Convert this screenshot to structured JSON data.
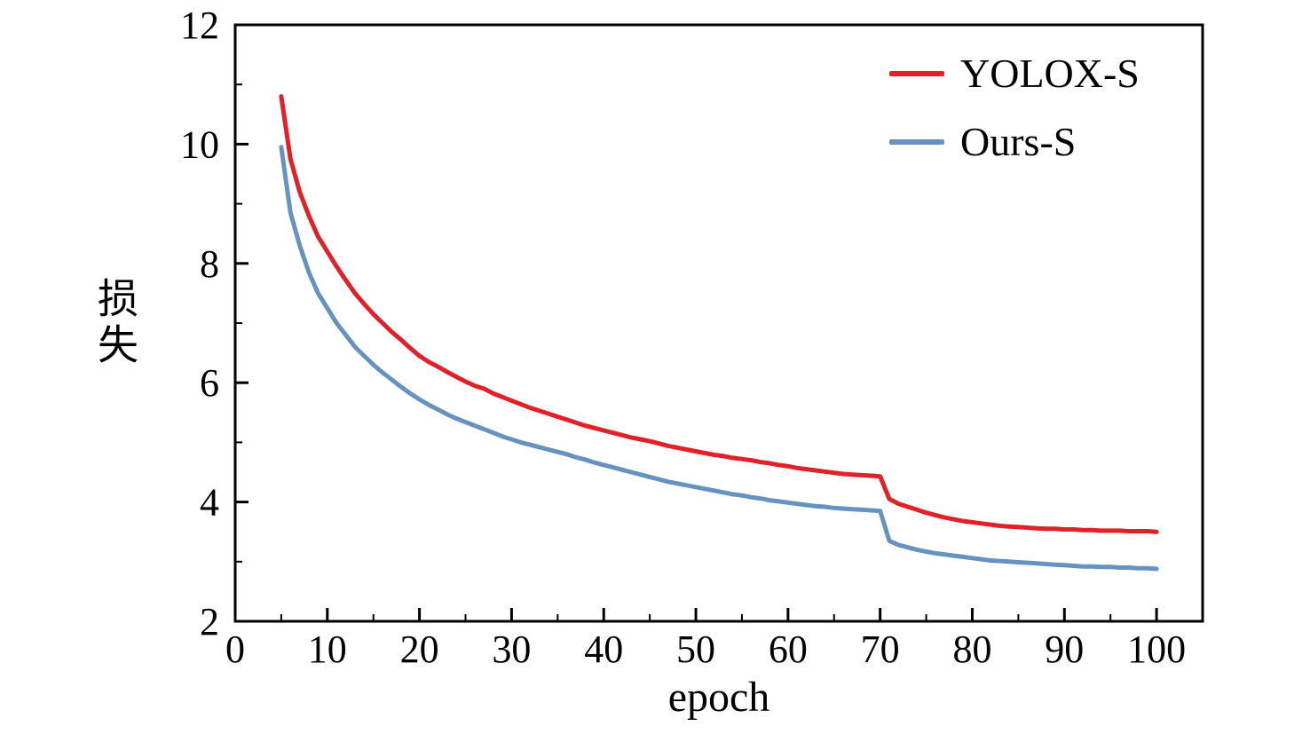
{
  "chart_data": {
    "type": "line",
    "title": "",
    "xlabel": "epoch",
    "ylabel": "损失",
    "xlim": [
      0,
      105
    ],
    "ylim": [
      2,
      12
    ],
    "x_ticks": [
      0,
      10,
      20,
      30,
      40,
      50,
      60,
      70,
      80,
      90,
      100
    ],
    "y_ticks": [
      2,
      4,
      6,
      8,
      10,
      12
    ],
    "x_minor_step": 5,
    "y_minor_step": 1,
    "grid": false,
    "legend_position": "upper right",
    "axis_color": "#000000",
    "x": [
      5,
      6,
      7,
      8,
      9,
      10,
      11,
      12,
      13,
      14,
      15,
      16,
      17,
      18,
      19,
      20,
      21,
      22,
      23,
      24,
      25,
      26,
      27,
      28,
      29,
      30,
      31,
      32,
      33,
      34,
      35,
      36,
      37,
      38,
      39,
      40,
      41,
      42,
      43,
      44,
      45,
      46,
      47,
      48,
      49,
      50,
      51,
      52,
      53,
      54,
      55,
      56,
      57,
      58,
      59,
      60,
      61,
      62,
      63,
      64,
      65,
      66,
      67,
      68,
      69,
      70,
      71,
      72,
      73,
      74,
      75,
      76,
      77,
      78,
      79,
      80,
      81,
      82,
      83,
      84,
      85,
      86,
      87,
      88,
      89,
      90,
      91,
      92,
      93,
      94,
      95,
      96,
      97,
      98,
      99,
      100
    ],
    "series": [
      {
        "name": "YOLOX-S",
        "color": "#e02128",
        "values": [
          10.8,
          9.75,
          9.2,
          8.8,
          8.45,
          8.2,
          7.95,
          7.72,
          7.5,
          7.32,
          7.15,
          7.0,
          6.85,
          6.72,
          6.58,
          6.45,
          6.35,
          6.27,
          6.18,
          6.1,
          6.02,
          5.95,
          5.9,
          5.82,
          5.76,
          5.7,
          5.64,
          5.58,
          5.53,
          5.48,
          5.43,
          5.38,
          5.33,
          5.28,
          5.24,
          5.2,
          5.16,
          5.12,
          5.08,
          5.05,
          5.02,
          4.98,
          4.94,
          4.91,
          4.88,
          4.85,
          4.82,
          4.79,
          4.77,
          4.74,
          4.72,
          4.7,
          4.67,
          4.65,
          4.62,
          4.6,
          4.57,
          4.55,
          4.53,
          4.51,
          4.49,
          4.47,
          4.46,
          4.45,
          4.44,
          4.43,
          4.05,
          3.97,
          3.92,
          3.87,
          3.82,
          3.78,
          3.74,
          3.71,
          3.68,
          3.66,
          3.64,
          3.62,
          3.6,
          3.59,
          3.58,
          3.57,
          3.56,
          3.55,
          3.55,
          3.54,
          3.54,
          3.53,
          3.53,
          3.52,
          3.52,
          3.52,
          3.51,
          3.51,
          3.51,
          3.5
        ]
      },
      {
        "name": "Ours-S",
        "color": "#6592c0",
        "values": [
          9.95,
          8.85,
          8.3,
          7.85,
          7.5,
          7.25,
          7.0,
          6.8,
          6.6,
          6.45,
          6.3,
          6.17,
          6.05,
          5.93,
          5.82,
          5.72,
          5.63,
          5.55,
          5.47,
          5.4,
          5.34,
          5.28,
          5.22,
          5.16,
          5.1,
          5.05,
          5.0,
          4.96,
          4.92,
          4.88,
          4.84,
          4.8,
          4.75,
          4.71,
          4.66,
          4.62,
          4.58,
          4.54,
          4.5,
          4.46,
          4.42,
          4.38,
          4.34,
          4.31,
          4.28,
          4.25,
          4.22,
          4.19,
          4.16,
          4.13,
          4.11,
          4.08,
          4.06,
          4.03,
          4.01,
          3.99,
          3.97,
          3.95,
          3.93,
          3.92,
          3.9,
          3.89,
          3.88,
          3.87,
          3.86,
          3.85,
          3.35,
          3.28,
          3.24,
          3.2,
          3.17,
          3.14,
          3.12,
          3.1,
          3.08,
          3.06,
          3.04,
          3.02,
          3.01,
          3.0,
          2.99,
          2.98,
          2.97,
          2.96,
          2.95,
          2.94,
          2.93,
          2.92,
          2.92,
          2.91,
          2.91,
          2.9,
          2.9,
          2.89,
          2.89,
          2.88
        ]
      }
    ]
  }
}
